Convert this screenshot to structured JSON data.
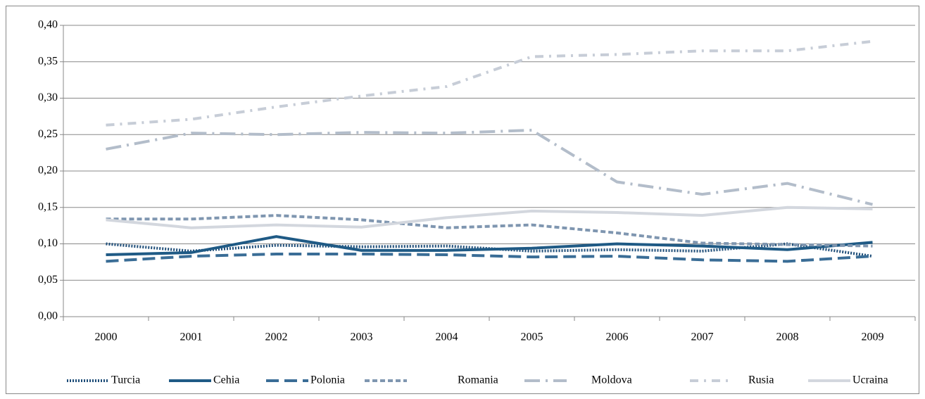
{
  "chart_data": {
    "type": "line",
    "categories": [
      "2000",
      "2001",
      "2002",
      "2003",
      "2004",
      "2005",
      "2006",
      "2007",
      "2008",
      "2009"
    ],
    "ylim": [
      0,
      0.4
    ],
    "yticks": [
      {
        "value": 0,
        "label": "0,00"
      },
      {
        "value": 0.05,
        "label": "0,05"
      },
      {
        "value": 0.1,
        "label": "0,10"
      },
      {
        "value": 0.15,
        "label": "0,15"
      },
      {
        "value": 0.2,
        "label": "0,20"
      },
      {
        "value": 0.25,
        "label": "0,25"
      },
      {
        "value": 0.3,
        "label": "0,30"
      },
      {
        "value": 0.35,
        "label": "0,35"
      },
      {
        "value": 0.4,
        "label": "0,40"
      }
    ],
    "grid": true,
    "legend": "bottom",
    "series": [
      {
        "name": "Turcia",
        "color": "#1f4e79",
        "values": [
          0.1,
          0.09,
          0.098,
          0.096,
          0.097,
          0.09,
          0.092,
          0.09,
          0.1,
          0.083
        ]
      },
      {
        "name": "Cehia",
        "color": "#1f5a85",
        "values": [
          0.085,
          0.088,
          0.11,
          0.091,
          0.091,
          0.094,
          0.1,
          0.097,
          0.092,
          0.102
        ]
      },
      {
        "name": "Polonia",
        "color": "#3a6d96",
        "values": [
          0.076,
          0.083,
          0.086,
          0.086,
          0.085,
          0.082,
          0.083,
          0.078,
          0.076,
          0.083
        ]
      },
      {
        "name": "Romania",
        "color": "#7f96b0",
        "values": [
          0.134,
          0.134,
          0.139,
          0.133,
          0.122,
          0.126,
          0.115,
          0.101,
          0.099,
          0.097
        ]
      },
      {
        "name": "Moldova",
        "color": "#b3bdca",
        "values": [
          0.23,
          0.252,
          0.25,
          0.253,
          0.252,
          0.256,
          0.185,
          0.168,
          0.183,
          0.154
        ]
      },
      {
        "name": "Rusia",
        "color": "#c7cdd7",
        "values": [
          0.263,
          0.271,
          0.288,
          0.303,
          0.316,
          0.357,
          0.36,
          0.365,
          0.365,
          0.378
        ]
      },
      {
        "name": "Ucraina",
        "color": "#d3d7de",
        "values": [
          0.133,
          0.122,
          0.126,
          0.123,
          0.136,
          0.145,
          0.143,
          0.139,
          0.15,
          0.148
        ]
      }
    ]
  }
}
